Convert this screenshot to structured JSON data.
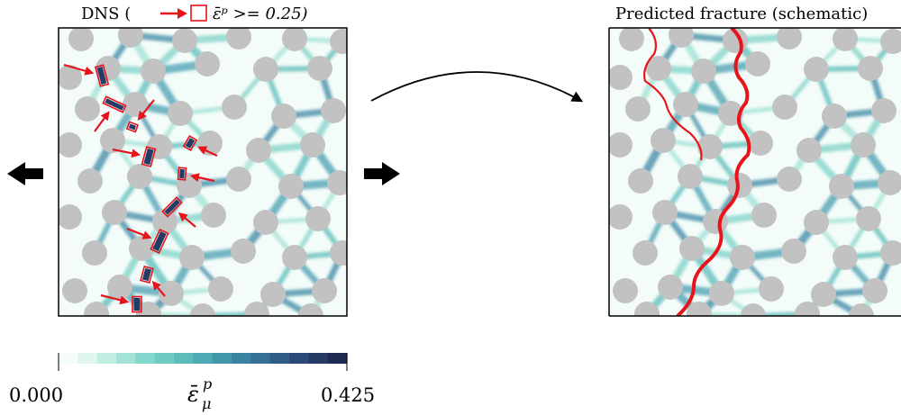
{
  "left_panel": {
    "title_prefix": "DNS (",
    "title_condition": "ε̄ᵖ >= 0.25)"
  },
  "right_panel": {
    "title": "Predicted fracture (schematic)"
  },
  "colorbar": {
    "min_label": "0.000",
    "max_label": "0.425",
    "symbol": "ε̄",
    "superscript": "p",
    "subscript": "μ",
    "colors": [
      "#f5fdf9",
      "#dff7ef",
      "#c0eee2",
      "#a2e3d6",
      "#86d7cb",
      "#6ecbc2",
      "#5cbcbb",
      "#4eaab4",
      "#4297ab",
      "#3a84a2",
      "#356f96",
      "#305c88",
      "#2b4a78",
      "#263a66",
      "#1f2a52"
    ]
  },
  "colors": {
    "marker": "#e8141b",
    "particle": "#c2c2c2",
    "arrow": "#000000"
  }
}
